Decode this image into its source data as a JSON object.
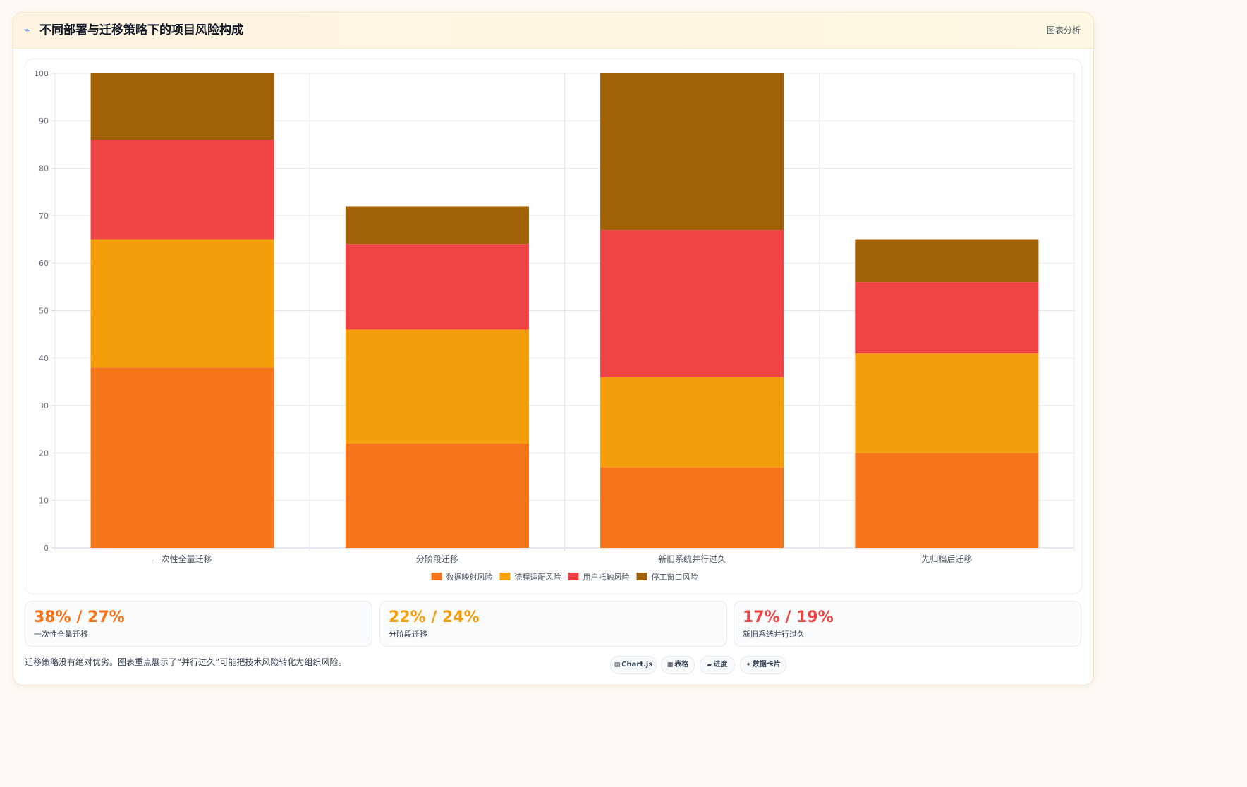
{
  "header": {
    "icon": "chart-line-icon",
    "icon_glyph": "⌁",
    "title": "不同部署与迁移策略下的项目风险构成",
    "link": "图表分析"
  },
  "chart_data": {
    "type": "bar",
    "stacked": true,
    "categories": [
      "一次性全量迁移",
      "分阶段迁移",
      "新旧系统并行过久",
      "先归档后迁移"
    ],
    "series": [
      {
        "name": "数据映射风险",
        "color": "#f5761a",
        "values": [
          38,
          22,
          17,
          20
        ]
      },
      {
        "name": "流程适配风险",
        "color": "#f59e0b",
        "values": [
          27,
          24,
          19,
          21
        ]
      },
      {
        "name": "用户抵触风险",
        "color": "#ef4444",
        "values": [
          21,
          18,
          31,
          15
        ]
      },
      {
        "name": "停工窗口风险",
        "color": "#a16207",
        "values": [
          14,
          8,
          33,
          9
        ]
      }
    ],
    "ylim": [
      0,
      100
    ],
    "yticks": [
      "0",
      "10",
      "20",
      "30",
      "40",
      "50",
      "60",
      "70",
      "80",
      "90",
      "100"
    ],
    "grid": true,
    "legend_position": "bottom"
  },
  "stats": [
    {
      "value": "38% / 27%",
      "label": "一次性全量迁移",
      "color": "#f97316"
    },
    {
      "value": "22% / 24%",
      "label": "分阶段迁移",
      "color": "#f59e0b"
    },
    {
      "value": "17% / 19%",
      "label": "新旧系统并行过久",
      "color": "#ef4444"
    }
  ],
  "footer": {
    "note": "迁移策略没有绝对优劣。图表重点展示了“并行过久”可能把技术风险转化为组织风险。",
    "tags": [
      {
        "icon": "chart-icon",
        "glyph": "▤",
        "label": "Chart.js"
      },
      {
        "icon": "table-icon",
        "glyph": "▦",
        "label": "表格"
      },
      {
        "icon": "progress-icon",
        "glyph": "▰",
        "label": "进度"
      },
      {
        "icon": "sparkle-icon",
        "glyph": "✦",
        "label": "数据卡片"
      }
    ]
  }
}
